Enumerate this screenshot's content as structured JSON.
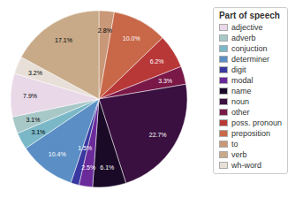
{
  "chart_data": {
    "type": "pie",
    "title": "Part of speech",
    "categories": [
      "to",
      "preposition",
      "poss. pronoun",
      "other",
      "noun",
      "name",
      "modal",
      "digit",
      "determiner",
      "conjuction",
      "adverb",
      "adjective",
      "wh-word",
      "verb"
    ],
    "values": [
      2.8,
      10.0,
      6.2,
      3.3,
      22.7,
      6.1,
      2.5,
      1.5,
      10.4,
      3.1,
      3.1,
      7.9,
      3.2,
      17.1
    ],
    "value_labels": [
      "2.8%",
      "10.0%",
      "6.2%",
      "3.3%",
      "22.7%",
      "6.1%",
      "2.5%",
      "1.5%",
      "10.4%",
      "3.1%",
      "3.1%",
      "7.9%",
      "3.2%",
      "17.1%"
    ],
    "colors": [
      "#c89878",
      "#c86848",
      "#b83838",
      "#7a1848",
      "#3a1040",
      "#1a0a28",
      "#6a2a9a",
      "#3838a0",
      "#5b8ec5",
      "#7ab8c8",
      "#a8c8c8",
      "#e8d8e8",
      "#e8e0d8",
      "#c8aa88"
    ],
    "data_labels": true,
    "legend": "right"
  }
}
